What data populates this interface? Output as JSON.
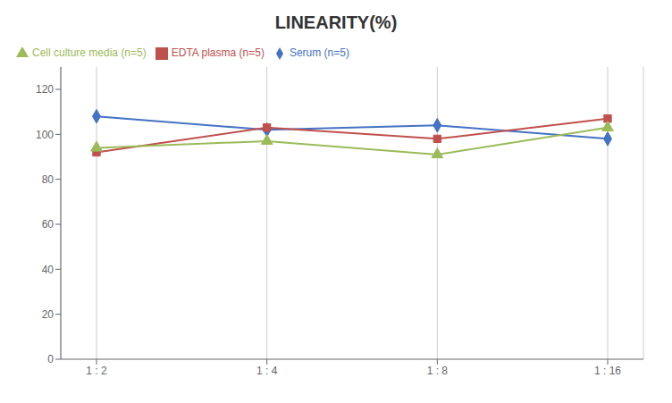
{
  "chart_data": {
    "type": "line",
    "title": "LINEARITY(%)",
    "categories": [
      "1 : 2",
      "1 : 4",
      "1 : 8",
      "1 : 16"
    ],
    "series": [
      {
        "name": "Serum (n=5)",
        "color": "#4472C4",
        "marker": "diamond",
        "values": [
          108,
          102,
          104,
          98
        ]
      },
      {
        "name": "EDTA plasma (n=5)",
        "color": "#C0504D",
        "marker": "square",
        "values": [
          92,
          103,
          98,
          107
        ]
      },
      {
        "name": "Cell culture media (n=5)",
        "color": "#9BBB59",
        "marker": "triangle",
        "values": [
          94,
          97,
          91,
          103
        ]
      }
    ],
    "ylim": [
      0,
      130
    ],
    "yticks": [
      0,
      20,
      40,
      60,
      80,
      100,
      120
    ],
    "grid": "x",
    "legend": "top"
  }
}
